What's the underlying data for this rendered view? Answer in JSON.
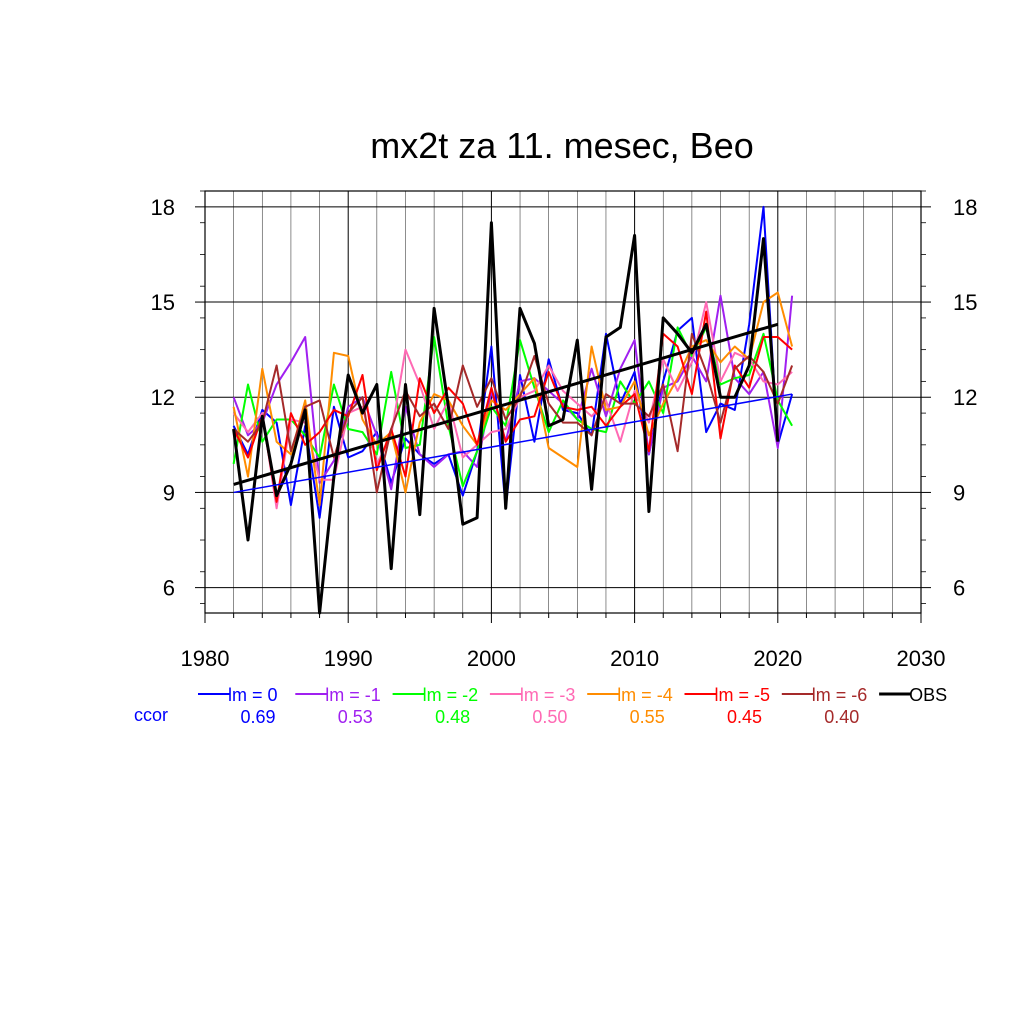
{
  "chart_data": {
    "type": "line",
    "title": "mx2t za 11. mesec, Beo",
    "xlabel": "",
    "ylabel": "",
    "xlim": [
      1980,
      2030
    ],
    "ylim": [
      5.2,
      18.5
    ],
    "x_ticks": [
      1980,
      1990,
      2000,
      2010,
      2020,
      2030
    ],
    "y_ticks": [
      6,
      9,
      12,
      15,
      18
    ],
    "grid": true,
    "legend_position": "bottom",
    "ccor_label": "ccor",
    "x": [
      1982,
      1983,
      1984,
      1985,
      1986,
      1987,
      1988,
      1989,
      1990,
      1991,
      1992,
      1993,
      1994,
      1995,
      1996,
      1997,
      1998,
      1999,
      2000,
      2001,
      2002,
      2003,
      2004,
      2005,
      2006,
      2007,
      2008,
      2009,
      2010,
      2011,
      2012,
      2013,
      2014,
      2015,
      2016,
      2017,
      2018,
      2019,
      2020,
      2021
    ],
    "series": [
      {
        "name": "lm = 0",
        "color": "#0000ff",
        "ccor": "0.69",
        "values": [
          11.1,
          10.2,
          11.6,
          11.2,
          8.6,
          11.1,
          8.2,
          11.7,
          10.1,
          10.3,
          10.9,
          9.3,
          10.7,
          10.2,
          9.9,
          10.2,
          8.9,
          10.3,
          13.6,
          8.5,
          12.7,
          10.6,
          13.2,
          11.6,
          11.5,
          10.8,
          14.0,
          11.8,
          12.8,
          10.2,
          12.5,
          14.1,
          14.5,
          10.9,
          11.8,
          11.6,
          14.3,
          18.0,
          10.5,
          12.1
        ]
      },
      {
        "name": "lm = -1",
        "color": "#a020f0",
        "ccor": "0.53",
        "values": [
          12.0,
          10.8,
          11.2,
          12.4,
          13.1,
          13.9,
          9.3,
          10.0,
          11.7,
          12.0,
          10.8,
          9.1,
          11.7,
          10.2,
          9.8,
          10.2,
          10.3,
          9.8,
          12.2,
          10.6,
          12.5,
          12.6,
          12.2,
          11.8,
          11.3,
          12.9,
          11.4,
          12.9,
          13.8,
          10.2,
          12.3,
          12.5,
          13.3,
          12.5,
          15.2,
          12.6,
          12.1,
          12.8,
          10.4,
          15.2
        ]
      },
      {
        "name": "lm = -2",
        "color": "#00ff00",
        "ccor": "0.48",
        "values": [
          9.9,
          12.4,
          10.6,
          11.3,
          11.3,
          10.8,
          10.1,
          12.4,
          11.0,
          10.9,
          10.2,
          12.8,
          10.4,
          10.5,
          13.9,
          11.1,
          9.2,
          10.3,
          11.7,
          11.1,
          13.8,
          12.3,
          10.9,
          11.9,
          11.3,
          11.0,
          10.9,
          12.5,
          11.8,
          12.5,
          11.5,
          14.2,
          13.3,
          14.2,
          12.4,
          12.6,
          12.7,
          14.0,
          11.9,
          11.1
        ]
      },
      {
        "name": "lm = -3",
        "color": "#ff69b4",
        "ccor": "0.50",
        "values": [
          11.5,
          10.9,
          11.5,
          8.5,
          11.3,
          11.2,
          9.4,
          9.4,
          11.5,
          11.7,
          9.9,
          10.8,
          13.5,
          12.4,
          11.0,
          11.9,
          10.1,
          10.5,
          10.9,
          11.0,
          12.0,
          12.2,
          13.0,
          12.2,
          11.8,
          11.4,
          11.9,
          10.6,
          12.2,
          11.2,
          13.2,
          12.2,
          13.1,
          15.0,
          12.5,
          13.4,
          13.2,
          12.5,
          12.4,
          12.8
        ]
      },
      {
        "name": "lm = -4",
        "color": "#ff8c00",
        "ccor": "0.55",
        "values": [
          11.7,
          9.5,
          12.9,
          10.6,
          10.2,
          11.9,
          8.6,
          13.4,
          13.3,
          11.3,
          10.5,
          10.9,
          9.0,
          11.2,
          12.1,
          11.9,
          11.1,
          10.5,
          11.9,
          11.6,
          12.1,
          12.6,
          10.4,
          10.1,
          9.8,
          13.6,
          11.6,
          11.7,
          12.5,
          10.8,
          11.8,
          12.6,
          13.6,
          13.8,
          13.1,
          13.6,
          13.2,
          15.0,
          15.3,
          13.6
        ]
      },
      {
        "name": "lm = -5",
        "color": "#ff0000",
        "ccor": "0.45",
        "values": [
          11.0,
          10.1,
          11.4,
          8.7,
          11.5,
          10.5,
          10.9,
          11.6,
          11.4,
          12.7,
          9.7,
          11.0,
          9.5,
          12.6,
          11.5,
          12.3,
          11.8,
          10.5,
          12.3,
          10.6,
          11.3,
          11.4,
          12.8,
          11.7,
          11.6,
          11.7,
          11.1,
          11.7,
          12.1,
          10.3,
          14.0,
          13.6,
          12.1,
          14.7,
          10.7,
          13.0,
          12.3,
          13.9,
          13.9,
          13.5
        ]
      },
      {
        "name": "lm = -6",
        "color": "#a52a2a",
        "ccor": "0.40",
        "values": [
          11.0,
          10.6,
          11.2,
          13.0,
          10.3,
          11.7,
          11.9,
          10.1,
          11.5,
          12.0,
          9.0,
          11.0,
          12.2,
          11.4,
          11.8,
          11.0,
          13.0,
          11.7,
          12.6,
          11.3,
          12.0,
          13.3,
          11.8,
          11.2,
          11.2,
          10.8,
          12.1,
          11.8,
          11.8,
          11.4,
          12.4,
          10.3,
          14.0,
          12.8,
          11.2,
          12.9,
          13.3,
          12.8,
          11.8,
          13.0
        ]
      },
      {
        "name": "OBS",
        "color": "#000000",
        "ccor": "",
        "values": [
          11.0,
          7.5,
          11.4,
          8.9,
          9.9,
          11.6,
          5.2,
          9.5,
          12.7,
          11.5,
          12.4,
          6.6,
          12.4,
          8.3,
          14.8,
          11.7,
          8.0,
          8.2,
          17.5,
          8.5,
          14.8,
          13.7,
          11.1,
          11.3,
          13.8,
          9.1,
          13.9,
          14.2,
          17.1,
          8.4,
          14.5,
          14.0,
          13.4,
          14.3,
          12.0,
          12.0,
          13.0,
          17.0,
          10.6,
          null
        ]
      }
    ],
    "trend_lines": [
      {
        "series": "lm = 0",
        "color": "#0000ff",
        "x": [
          1982,
          2021
        ],
        "y": [
          9.0,
          12.1
        ]
      },
      {
        "series": "OBS",
        "color": "#000000",
        "x": [
          1982,
          2020
        ],
        "y": [
          9.25,
          14.3
        ]
      }
    ]
  }
}
